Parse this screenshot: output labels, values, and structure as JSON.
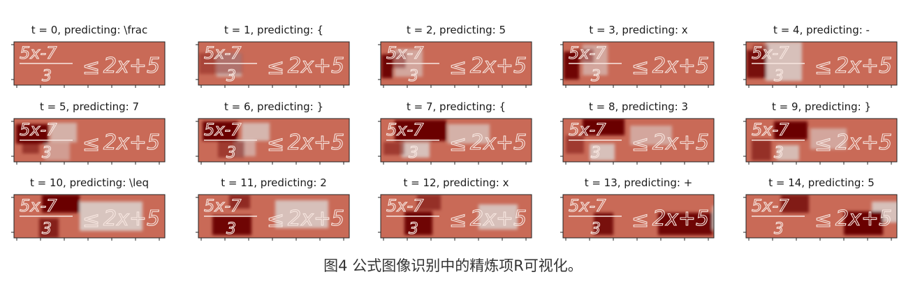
{
  "figure": {
    "panels": [
      {
        "label": "t = 0, predicting: \\frac",
        "focus": [],
        "cool": []
      },
      {
        "label": "t = 1, predicting: {",
        "focus": [
          [
            1,
            16,
            62,
            30,
            0.35
          ]
        ],
        "cool": [
          [
            26,
            16,
            36,
            34,
            0.7
          ]
        ]
      },
      {
        "label": "t = 2, predicting: 5",
        "focus": [
          [
            1,
            18,
            16,
            34,
            0.95
          ],
          [
            12,
            16,
            24,
            22,
            0.4
          ]
        ],
        "cool": [
          [
            20,
            10,
            40,
            40,
            0.6
          ]
        ]
      },
      {
        "label": "t = 3, predicting: x",
        "focus": [
          [
            1,
            14,
            22,
            40,
            0.95
          ],
          [
            18,
            10,
            26,
            20,
            0.4
          ]
        ],
        "cool": [
          [
            28,
            4,
            36,
            44,
            0.6
          ]
        ]
      },
      {
        "label": "t = 4, predicting: -",
        "focus": [
          [
            1,
            12,
            28,
            40,
            0.85
          ],
          [
            10,
            4,
            22,
            16,
            0.4
          ]
        ],
        "cool": [
          [
            28,
            0,
            52,
            56,
            0.85
          ]
        ]
      },
      {
        "label": "t = 5, predicting: 7",
        "focus": [
          [
            3,
            8,
            46,
            28,
            1.0
          ],
          [
            12,
            28,
            24,
            22,
            0.5
          ]
        ],
        "cool": [
          [
            52,
            6,
            38,
            28,
            0.7
          ],
          [
            44,
            34,
            36,
            26,
            0.5
          ]
        ]
      },
      {
        "label": "t = 6, predicting: }",
        "focus": [
          [
            6,
            4,
            50,
            28,
            1.0
          ],
          [
            28,
            32,
            38,
            24,
            0.45
          ]
        ],
        "cool": [
          [
            62,
            6,
            40,
            26,
            0.75
          ],
          [
            52,
            30,
            30,
            24,
            0.6
          ]
        ]
      },
      {
        "label": "t = 7, predicting: {",
        "focus": [
          [
            20,
            2,
            74,
            30,
            1.0
          ],
          [
            4,
            34,
            30,
            18,
            0.45
          ]
        ],
        "cool": [
          [
            30,
            34,
            40,
            22,
            0.85
          ],
          [
            96,
            8,
            60,
            28,
            0.7
          ]
        ]
      },
      {
        "label": "t = 8, predicting: 3",
        "focus": [
          [
            28,
            0,
            60,
            24,
            1.0
          ],
          [
            4,
            24,
            26,
            26,
            0.45
          ]
        ],
        "cool": [
          [
            38,
            36,
            36,
            24,
            0.85
          ],
          [
            96,
            10,
            60,
            28,
            0.6
          ]
        ]
      },
      {
        "label": "t = 9, predicting: }",
        "focus": [
          [
            40,
            4,
            48,
            26,
            1.0
          ],
          [
            8,
            30,
            28,
            30,
            0.55
          ]
        ],
        "cool": [
          [
            44,
            38,
            32,
            22,
            0.8
          ],
          [
            92,
            14,
            52,
            30,
            0.6
          ]
        ]
      },
      {
        "label": "t = 10, predicting: \\leq",
        "focus": [
          [
            40,
            0,
            54,
            26,
            1.0
          ],
          [
            36,
            34,
            28,
            28,
            0.7
          ]
        ],
        "cool": [
          [
            94,
            10,
            90,
            42,
            0.9
          ]
        ]
      },
      {
        "label": "t = 11, predicting: 2",
        "focus": [
          [
            20,
            30,
            56,
            28,
            0.95
          ],
          [
            44,
            0,
            30,
            20,
            0.6
          ]
        ],
        "cool": [
          [
            110,
            8,
            76,
            40,
            0.85
          ]
        ]
      },
      {
        "label": "t = 12, predicting: x",
        "focus": [
          [
            34,
            24,
            40,
            34,
            0.95
          ],
          [
            52,
            0,
            34,
            22,
            0.55
          ]
        ],
        "cool": [
          [
            140,
            14,
            56,
            36,
            0.85
          ]
        ]
      },
      {
        "label": "t = 13, predicting: +",
        "focus": [
          [
            44,
            26,
            28,
            32,
            0.85
          ],
          [
            136,
            26,
            78,
            32,
            0.95
          ]
        ],
        "cool": [
          [
            214,
            16,
            36,
            34,
            0.85
          ]
        ]
      },
      {
        "label": "t = 14, predicting: 5",
        "focus": [
          [
            50,
            0,
            40,
            26,
            0.75
          ],
          [
            140,
            24,
            56,
            34,
            1.0
          ]
        ],
        "cool": [
          [
            180,
            10,
            40,
            30,
            0.85
          ]
        ]
      }
    ],
    "handwriting": {
      "numerator": "5x-7",
      "denominator": "3",
      "relation": "≤",
      "rhs": "2x+5"
    },
    "colors": {
      "background_heat": "#c96a57",
      "focus_heat": "#6a0000",
      "cool_heat": "#d9cfcb",
      "ink": "#f7e6e0"
    },
    "caption": "图4 公式图像识别中的精炼项R可视化。"
  }
}
